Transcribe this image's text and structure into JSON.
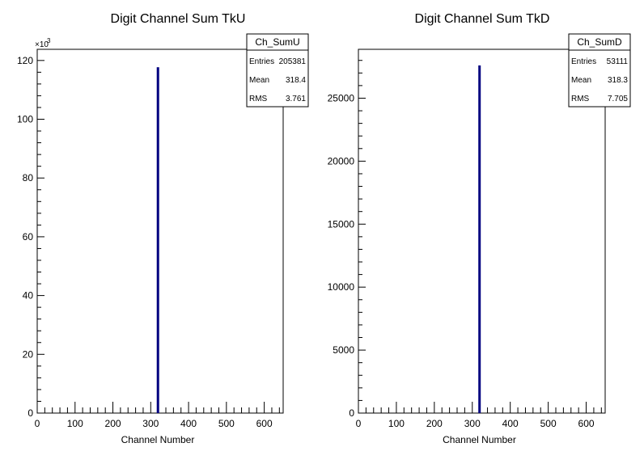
{
  "chart_data": [
    {
      "type": "bar",
      "title": "Digit Channel Sum TkU",
      "xlabel": "Channel Number",
      "ylabel": "",
      "xlim": [
        0,
        650
      ],
      "ylim": [
        0,
        123.8
      ],
      "y_multiplier": "×10",
      "y_multiplier_exp": "3",
      "x_ticks": [
        0,
        100,
        200,
        300,
        400,
        500,
        600
      ],
      "x_tick_labels": [
        "0",
        "100",
        "200",
        "300",
        "400",
        "500",
        "600"
      ],
      "y_ticks": [
        0,
        20,
        40,
        60,
        80,
        100,
        120
      ],
      "y_tick_labels": [
        "0",
        "20",
        "40",
        "60",
        "80",
        "100",
        "120"
      ],
      "bins": [
        {
          "x": 318,
          "y": 117.7
        }
      ],
      "color": "#000080",
      "stats": {
        "name": "Ch_SumU",
        "rows": [
          {
            "label": "Entries",
            "value": "205381"
          },
          {
            "label": "Mean",
            "value": "318.4"
          },
          {
            "label": "RMS",
            "value": "3.761"
          }
        ]
      }
    },
    {
      "type": "bar",
      "title": "Digit Channel Sum TkD",
      "xlabel": "Channel Number",
      "ylabel": "",
      "xlim": [
        0,
        650
      ],
      "ylim": [
        0,
        28880
      ],
      "y_multiplier": "",
      "y_multiplier_exp": "",
      "x_ticks": [
        0,
        100,
        200,
        300,
        400,
        500,
        600
      ],
      "x_tick_labels": [
        "0",
        "100",
        "200",
        "300",
        "400",
        "500",
        "600"
      ],
      "y_ticks": [
        0,
        5000,
        10000,
        15000,
        20000,
        25000
      ],
      "y_tick_labels": [
        "0",
        "5000",
        "10000",
        "15000",
        "20000",
        "25000"
      ],
      "bins": [
        {
          "x": 318,
          "y": 27600
        }
      ],
      "color": "#000080",
      "stats": {
        "name": "Ch_SumD",
        "rows": [
          {
            "label": "Entries",
            "value": "53111"
          },
          {
            "label": "Mean",
            "value": "318.3"
          },
          {
            "label": "RMS",
            "value": "7.705"
          }
        ]
      }
    }
  ]
}
